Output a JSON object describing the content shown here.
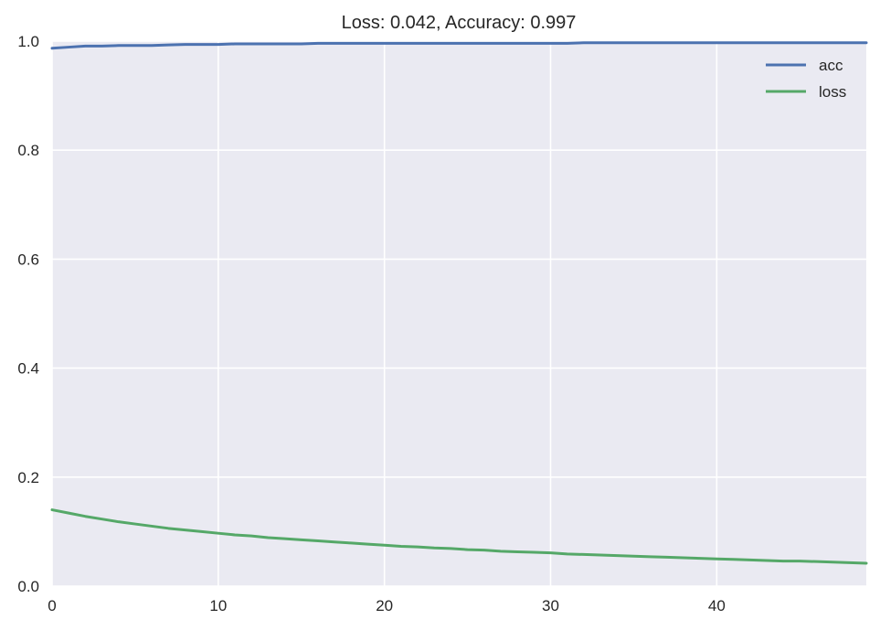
{
  "chart_data": {
    "type": "line",
    "title": "Loss: 0.042, Accuracy: 0.997",
    "xlabel": "",
    "ylabel": "",
    "xlim": [
      0,
      49
    ],
    "ylim": [
      0,
      1.0
    ],
    "xticks": [
      0,
      10,
      20,
      30,
      40
    ],
    "yticks": [
      0.0,
      0.2,
      0.4,
      0.6,
      0.8,
      1.0
    ],
    "xtick_labels": [
      "0",
      "10",
      "20",
      "30",
      "40"
    ],
    "ytick_labels": [
      "0.0",
      "0.2",
      "0.4",
      "0.6",
      "0.8",
      "1.0"
    ],
    "grid": true,
    "legend_position": "top-right",
    "x": [
      0,
      1,
      2,
      3,
      4,
      5,
      6,
      7,
      8,
      9,
      10,
      11,
      12,
      13,
      14,
      15,
      16,
      17,
      18,
      19,
      20,
      21,
      22,
      23,
      24,
      25,
      26,
      27,
      28,
      29,
      30,
      31,
      32,
      33,
      34,
      35,
      36,
      37,
      38,
      39,
      40,
      41,
      42,
      43,
      44,
      45,
      46,
      47,
      48,
      49
    ],
    "series": [
      {
        "name": "acc",
        "color": "#4c72b0",
        "values": [
          0.987,
          0.989,
          0.991,
          0.991,
          0.992,
          0.992,
          0.992,
          0.993,
          0.994,
          0.994,
          0.994,
          0.995,
          0.995,
          0.995,
          0.995,
          0.995,
          0.996,
          0.996,
          0.996,
          0.996,
          0.996,
          0.996,
          0.996,
          0.996,
          0.996,
          0.996,
          0.996,
          0.996,
          0.996,
          0.996,
          0.996,
          0.996,
          0.997,
          0.997,
          0.997,
          0.997,
          0.997,
          0.997,
          0.997,
          0.997,
          0.997,
          0.997,
          0.997,
          0.997,
          0.997,
          0.997,
          0.997,
          0.997,
          0.997,
          0.997
        ]
      },
      {
        "name": "loss",
        "color": "#55a868",
        "values": [
          0.14,
          0.134,
          0.128,
          0.123,
          0.118,
          0.114,
          0.11,
          0.106,
          0.103,
          0.1,
          0.097,
          0.094,
          0.092,
          0.089,
          0.087,
          0.085,
          0.083,
          0.081,
          0.079,
          0.077,
          0.075,
          0.073,
          0.072,
          0.07,
          0.069,
          0.067,
          0.066,
          0.064,
          0.063,
          0.062,
          0.061,
          0.059,
          0.058,
          0.057,
          0.056,
          0.055,
          0.054,
          0.053,
          0.052,
          0.051,
          0.05,
          0.049,
          0.048,
          0.047,
          0.046,
          0.046,
          0.045,
          0.044,
          0.043,
          0.042
        ]
      }
    ],
    "colors": {
      "plot_background": "#eaeaf2",
      "grid": "#ffffff",
      "text": "#262626"
    }
  }
}
